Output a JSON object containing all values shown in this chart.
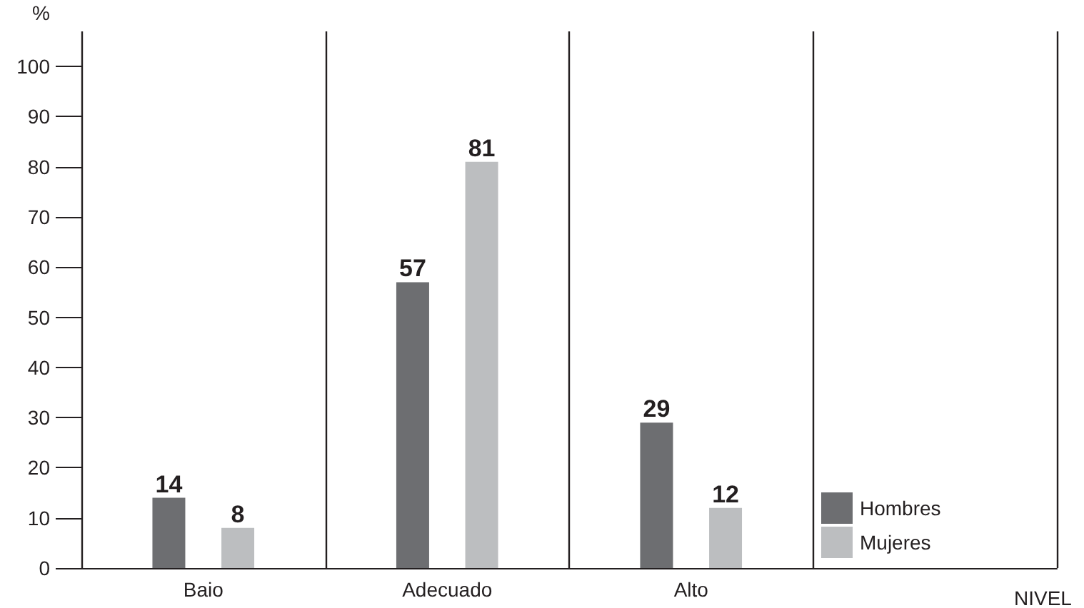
{
  "chart_data": {
    "type": "bar",
    "ylabel": "%",
    "xlabel": "NIVEL",
    "categories": [
      "Baio",
      "Adecuado",
      "Alto",
      null
    ],
    "series": [
      {
        "name": "Hombres",
        "color": "#6d6e71",
        "values": [
          14,
          57,
          29,
          null
        ]
      },
      {
        "name": "Mujeres",
        "color": "#bcbec0",
        "values": [
          8,
          81,
          12,
          null
        ]
      }
    ],
    "ylim": [
      0,
      107
    ],
    "yticks": [
      0,
      10,
      20,
      30,
      40,
      50,
      60,
      70,
      80,
      90,
      100
    ],
    "grid": "x",
    "legend": "bottom right",
    "data_labels": true
  }
}
